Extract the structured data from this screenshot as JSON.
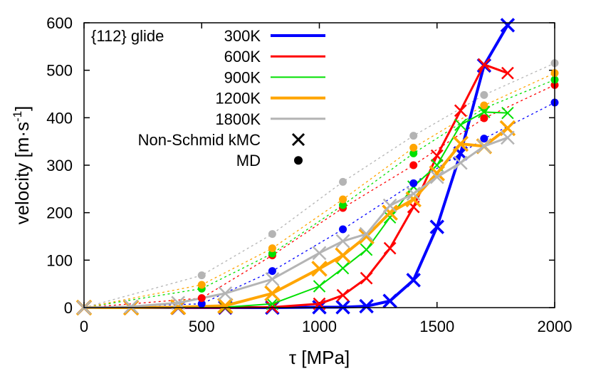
{
  "chart_data": {
    "type": "line",
    "xlabel": "τ [MPa]",
    "ylabel": "velocity [m·s",
    "ylabel_sup": "-1",
    "ylabel_close": "]",
    "annotation": "{112} glide",
    "xlim": [
      0,
      2000
    ],
    "ylim": [
      0,
      600
    ],
    "x_ticks": [
      0,
      500,
      1000,
      1500,
      2000
    ],
    "y_ticks": [
      0,
      100,
      200,
      300,
      400,
      500,
      600
    ],
    "legend": {
      "kmc_label": "Non-Schmid kMC",
      "md_label": "MD"
    },
    "series": [
      {
        "name": "300K",
        "color": "#0000ff",
        "width": 4,
        "marker_size": 9,
        "kmc_x": [
          0,
          200,
          400,
          600,
          800,
          1000,
          1100,
          1200,
          1300,
          1400,
          1500,
          1600,
          1700,
          1800
        ],
        "kmc_y": [
          0,
          0,
          0,
          0,
          0,
          1,
          1,
          3,
          14,
          58,
          170,
          325,
          510,
          595
        ],
        "md_x": [
          500,
          800,
          1100,
          1400,
          1700,
          2000
        ],
        "md_y": [
          8,
          77,
          165,
          262,
          356,
          432
        ]
      },
      {
        "name": "600K",
        "color": "#ff0000",
        "width": 3,
        "marker_size": 8,
        "kmc_x": [
          0,
          200,
          400,
          600,
          800,
          1000,
          1100,
          1200,
          1300,
          1400,
          1500,
          1600,
          1700,
          1800
        ],
        "kmc_y": [
          0,
          0,
          0,
          0,
          1,
          8,
          26,
          62,
          125,
          212,
          320,
          415,
          512,
          494
        ],
        "md_x": [
          500,
          800,
          1100,
          1400,
          1700,
          2000
        ],
        "md_y": [
          20,
          110,
          210,
          300,
          399,
          469
        ]
      },
      {
        "name": "900K",
        "color": "#00e000",
        "width": 2,
        "marker_size": 8,
        "kmc_x": [
          0,
          200,
          400,
          600,
          800,
          1000,
          1100,
          1200,
          1300,
          1400,
          1500,
          1600,
          1700,
          1800
        ],
        "kmc_y": [
          0,
          0,
          0,
          1,
          8,
          45,
          83,
          122,
          190,
          255,
          300,
          385,
          412,
          410
        ],
        "md_x": [
          500,
          800,
          1100,
          1400,
          1700,
          2000
        ],
        "md_y": [
          40,
          114,
          216,
          325,
          420,
          480
        ]
      },
      {
        "name": "1200K",
        "color": "#ffa500",
        "width": 4,
        "marker_size": 10,
        "kmc_x": [
          0,
          200,
          400,
          600,
          800,
          1000,
          1100,
          1200,
          1300,
          1400,
          1500,
          1600,
          1700,
          1800
        ],
        "kmc_y": [
          0,
          0,
          1,
          4,
          30,
          82,
          110,
          150,
          200,
          228,
          283,
          345,
          340,
          378
        ],
        "md_x": [
          500,
          800,
          1100,
          1400,
          1700,
          2000
        ],
        "md_y": [
          48,
          125,
          228,
          337,
          426,
          494
        ]
      },
      {
        "name": "1800K",
        "color": "#b4b4b4",
        "width": 3,
        "marker_size": 9,
        "kmc_x": [
          0,
          200,
          400,
          600,
          800,
          1000,
          1100,
          1200,
          1300,
          1400,
          1500,
          1600,
          1700,
          1800
        ],
        "kmc_y": [
          0,
          2,
          10,
          30,
          60,
          115,
          140,
          155,
          215,
          240,
          275,
          305,
          340,
          358
        ],
        "md_x": [
          500,
          800,
          1100,
          1400,
          1700,
          2000
        ],
        "md_y": [
          68,
          155,
          265,
          362,
          448,
          515
        ]
      }
    ]
  }
}
